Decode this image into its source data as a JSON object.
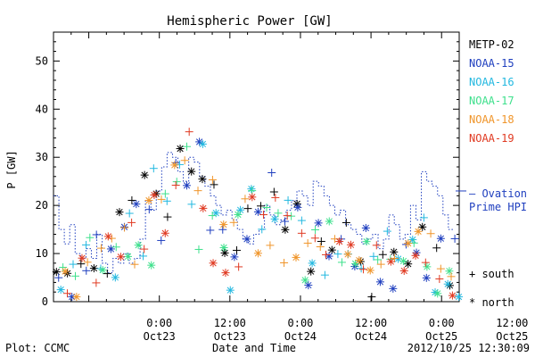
{
  "chart_data": {
    "type": "scatter",
    "title": "Hemispheric Power [GW]",
    "ylabel": "P [GW]",
    "xlabel": "Date and Time",
    "ylim": [
      0,
      56
    ],
    "xlim_hours": [
      0,
      69
    ],
    "y_ticks": [
      0,
      10,
      20,
      30,
      40,
      50
    ],
    "x_ticks": [
      {
        "hour": 18,
        "time": "0:00",
        "date": "Oct23"
      },
      {
        "hour": 30,
        "time": "12:00",
        "date": "Oct23"
      },
      {
        "hour": 42,
        "time": "0:00",
        "date": "Oct24"
      },
      {
        "hour": 54,
        "time": "12:00",
        "date": "Oct24"
      },
      {
        "hour": 66,
        "time": "0:00",
        "date": "Oct25"
      },
      {
        "hour": 78,
        "time": "12:00",
        "date": "Oct25"
      }
    ],
    "grid": false,
    "legend_position": "right",
    "series": [
      {
        "name": "METP-02",
        "color": "#000000"
      },
      {
        "name": "NOAA-15",
        "color": "#1f3fbf"
      },
      {
        "name": "NOAA-16",
        "color": "#22b8e0"
      },
      {
        "name": "NOAA-17",
        "color": "#3ee08c"
      },
      {
        "name": "NOAA-18",
        "color": "#f0952a"
      },
      {
        "name": "NOAA-19",
        "color": "#e03a22"
      }
    ],
    "ovation_label_line1": "— Ovation",
    "ovation_label_line2": "Prime HPI",
    "ovation_color": "#1f3fbf",
    "marker_south_label": "+ south",
    "marker_north_label": "* north"
  },
  "footer": {
    "plot_label": "Plot: CCMC",
    "timestamp": "2012/10/25 12:30:09"
  }
}
